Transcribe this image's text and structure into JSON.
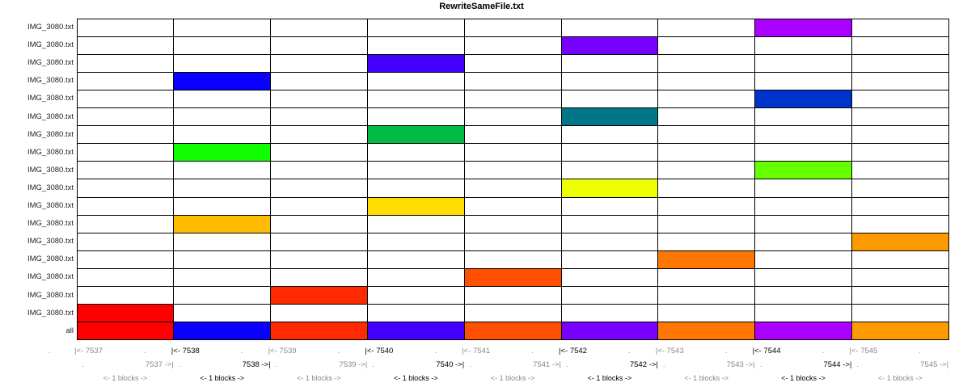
{
  "title": "RewriteSameFile.txt",
  "chart_data": {
    "type": "table",
    "columns": [
      {
        "block": "7537",
        "label_start": "|<- 7537",
        "label_end": "7537 ->|",
        "span": "<- 1 blocks ->",
        "emphasis": false
      },
      {
        "block": "7538",
        "label_start": "|<- 7538",
        "label_end": "7538 ->|",
        "span": "<- 1 blocks ->",
        "emphasis": true
      },
      {
        "block": "7539",
        "label_start": "|<- 7539",
        "label_end": "7539 ->|",
        "span": "<- 1 blocks ->",
        "emphasis": false
      },
      {
        "block": "7540",
        "label_start": "|<- 7540",
        "label_end": "7540 ->|",
        "span": "<- 1 blocks ->",
        "emphasis": true
      },
      {
        "block": "7541",
        "label_start": "|<- 7541",
        "label_end": "7541 ->|",
        "span": "<- 1 blocks ->",
        "emphasis": false
      },
      {
        "block": "7542",
        "label_start": "|<- 7542",
        "label_end": "7542 ->|",
        "span": "<- 1 blocks ->",
        "emphasis": true
      },
      {
        "block": "7543",
        "label_start": "|<- 7543",
        "label_end": "7543 ->|",
        "span": "<- 1 blocks ->",
        "emphasis": false
      },
      {
        "block": "7544",
        "label_start": "|<- 7544",
        "label_end": "7544 ->|",
        "span": "<- 1 blocks ->",
        "emphasis": true
      },
      {
        "block": "7545",
        "label_start": "|<- 7545",
        "label_end": "7545 ->|",
        "span": "<- 1 blocks ->",
        "emphasis": false
      }
    ],
    "rows": [
      {
        "label": "IMG_3080.txt",
        "block_index": 7,
        "color": "#aa00ff"
      },
      {
        "label": "IMG_3080.txt",
        "block_index": 5,
        "color": "#7700ff"
      },
      {
        "label": "IMG_3080.txt",
        "block_index": 3,
        "color": "#4400ff"
      },
      {
        "label": "IMG_3080.txt",
        "block_index": 1,
        "color": "#0a00ff"
      },
      {
        "label": "IMG_3080.txt",
        "block_index": 7,
        "color": "#0033cc"
      },
      {
        "label": "IMG_3080.txt",
        "block_index": 5,
        "color": "#007788"
      },
      {
        "label": "IMG_3080.txt",
        "block_index": 3,
        "color": "#00bb44"
      },
      {
        "label": "IMG_3080.txt",
        "block_index": 1,
        "color": "#11ff00"
      },
      {
        "label": "IMG_3080.txt",
        "block_index": 7,
        "color": "#66ff00"
      },
      {
        "label": "IMG_3080.txt",
        "block_index": 5,
        "color": "#eeff00"
      },
      {
        "label": "IMG_3080.txt",
        "block_index": 3,
        "color": "#ffdd00"
      },
      {
        "label": "IMG_3080.txt",
        "block_index": 1,
        "color": "#ffbb00"
      },
      {
        "label": "IMG_3080.txt",
        "block_index": 8,
        "color": "#ff9900"
      },
      {
        "label": "IMG_3080.txt",
        "block_index": 6,
        "color": "#ff7700"
      },
      {
        "label": "IMG_3080.txt",
        "block_index": 4,
        "color": "#ff4f00"
      },
      {
        "label": "IMG_3080.txt",
        "block_index": 2,
        "color": "#ff2a00"
      },
      {
        "label": "IMG_3080.txt",
        "block_index": 0,
        "color": "#ff0000"
      }
    ],
    "all_row": {
      "label": "all",
      "colors": [
        "#ff0000",
        "#0a00ff",
        "#ff2a00",
        "#4400ff",
        "#ff4f00",
        "#7700ff",
        "#ff7700",
        "#aa00ff",
        "#ff9900"
      ]
    },
    "leading_mark": "."
  }
}
